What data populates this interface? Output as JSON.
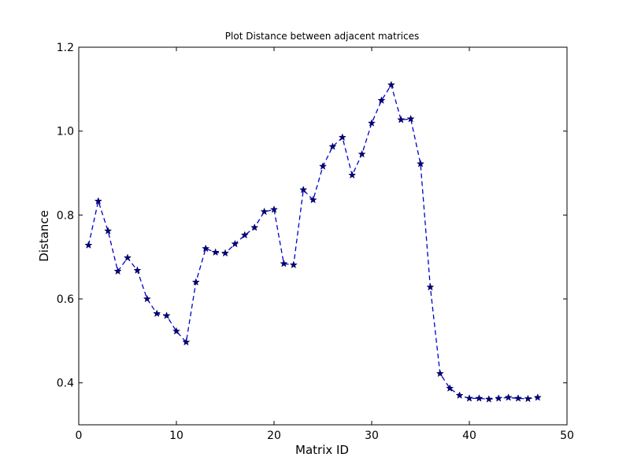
{
  "chart_data": {
    "type": "line",
    "title": "Plot Distance between adjacent matrices",
    "xlabel": "Matrix ID",
    "ylabel": "Distance",
    "xlim": [
      0,
      50
    ],
    "ylim": [
      0.3,
      1.2
    ],
    "xticks": [
      "0",
      "10",
      "20",
      "30",
      "40",
      "50"
    ],
    "yticks": [
      "0.4",
      "0.6",
      "0.8",
      "1.0",
      "1.2"
    ],
    "grid": false,
    "legend": "none",
    "line_style": "dashed",
    "marker": "star",
    "line_color": "#0000cc",
    "marker_color": "#000080",
    "series": [
      {
        "x": [
          1,
          2,
          3,
          4,
          5,
          6,
          7,
          8,
          9,
          10,
          11,
          12,
          13,
          14,
          15,
          16,
          17,
          18,
          19,
          20,
          21,
          22,
          23,
          24,
          25,
          26,
          27,
          28,
          29,
          30,
          31,
          32,
          33,
          34,
          35,
          36,
          37,
          38,
          39,
          40,
          41,
          42,
          43,
          44,
          45,
          46,
          47
        ],
        "y": [
          0.728,
          0.833,
          0.762,
          0.666,
          0.698,
          0.668,
          0.6,
          0.565,
          0.56,
          0.523,
          0.497,
          0.64,
          0.72,
          0.711,
          0.709,
          0.731,
          0.752,
          0.77,
          0.808,
          0.813,
          0.684,
          0.681,
          0.86,
          0.836,
          0.916,
          0.963,
          0.985,
          0.895,
          0.945,
          1.019,
          1.073,
          1.11,
          1.027,
          1.029,
          0.922,
          0.628,
          0.422,
          0.387,
          0.37,
          0.363,
          0.363,
          0.361,
          0.363,
          0.365,
          0.363,
          0.362,
          0.365
        ]
      }
    ]
  }
}
